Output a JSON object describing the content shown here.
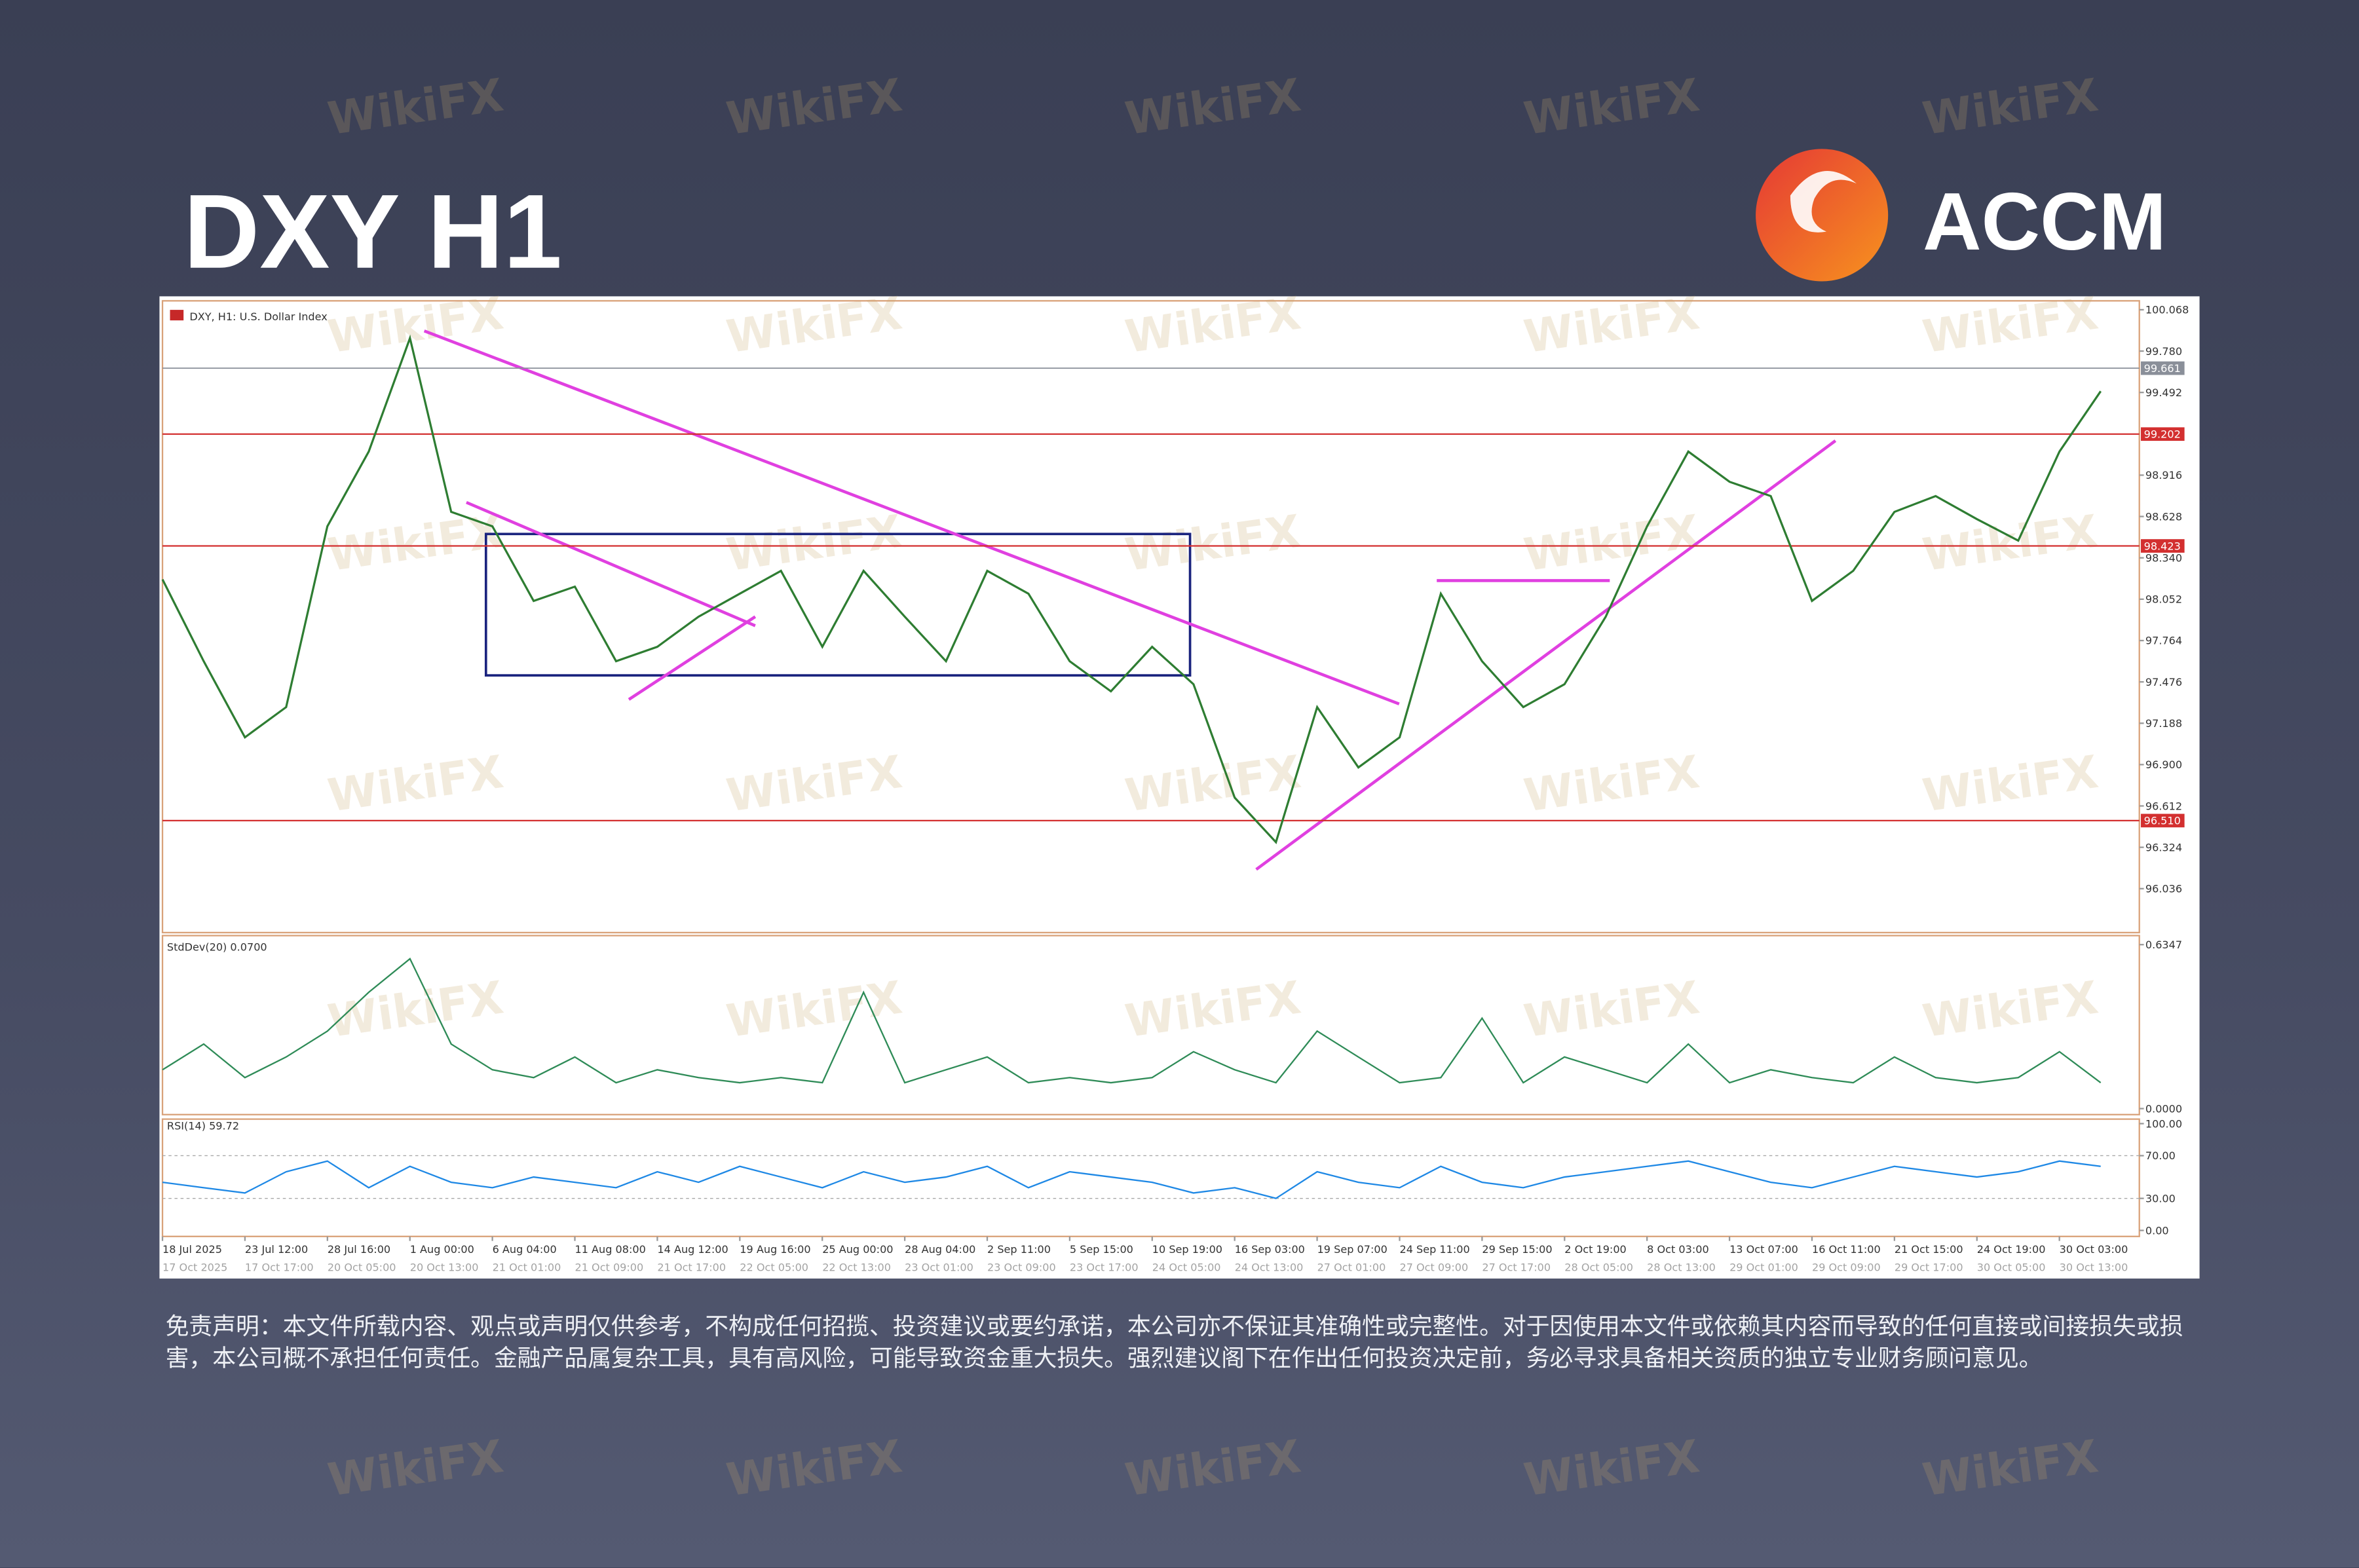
{
  "header": {
    "title": "DXY H1",
    "brand": "ACCM"
  },
  "watermark": "WikiFX",
  "chart_data": {
    "type": "line",
    "title": "DXY, H1: U.S. Dollar Index",
    "categories": [
      "18 Jul 2025",
      null,
      "23 Jul 12:00",
      null,
      "28 Jul 16:00",
      null,
      "1 Aug 00:00",
      null,
      "6 Aug 04:00",
      null,
      "11 Aug 08:00",
      null,
      "14 Aug 12:00",
      null,
      "19 Aug 16:00",
      null,
      "25 Aug 00:00",
      null,
      "28 Aug 04:00",
      null,
      "2 Sep 11:00",
      null,
      "5 Sep 15:00",
      null,
      "10 Sep 19:00",
      null,
      "16 Sep 03:00",
      null,
      "19 Sep 07:00",
      null,
      "24 Sep 11:00",
      null,
      "29 Sep 15:00",
      null,
      "2 Oct 19:00",
      null,
      "8 Oct 03:00",
      null,
      "13 Oct 07:00",
      null,
      "16 Oct 11:00",
      null,
      "21 Oct 15:00",
      null,
      "24 Oct 19:00",
      null,
      "30 Oct 03:00",
      null
    ],
    "secondary_categories": [
      "17 Oct 2025",
      null,
      "17 Oct 17:00",
      null,
      "20 Oct 05:00",
      null,
      "20 Oct 13:00",
      null,
      "21 Oct 01:00",
      null,
      "21 Oct 09:00",
      null,
      "21 Oct 17:00",
      null,
      "22 Oct 05:00",
      null,
      "22 Oct 13:00",
      null,
      "23 Oct 01:00",
      null,
      "23 Oct 09:00",
      null,
      "23 Oct 17:00",
      null,
      "24 Oct 05:00",
      null,
      "24 Oct 13:00",
      null,
      "27 Oct 01:00",
      null,
      "27 Oct 09:00",
      null,
      "27 Oct 17:00",
      null,
      "28 Oct 05:00",
      null,
      "28 Oct 13:00",
      null,
      "29 Oct 01:00",
      null,
      "29 Oct 09:00",
      null,
      "29 Oct 17:00",
      null,
      "30 Oct 05:00",
      null,
      "30 Oct 13:00",
      null
    ],
    "values": [
      98.19,
      97.62,
      97.09,
      97.3,
      98.56,
      99.08,
      99.87,
      98.66,
      98.56,
      98.04,
      98.14,
      97.62,
      97.72,
      97.93,
      98.09,
      98.25,
      97.72,
      98.25,
      97.93,
      97.62,
      98.25,
      98.09,
      97.62,
      97.41,
      97.72,
      97.46,
      96.67,
      96.36,
      97.3,
      96.88,
      97.09,
      98.09,
      97.62,
      97.3,
      97.46,
      97.93,
      98.56,
      99.08,
      98.87,
      98.77,
      98.04,
      98.25,
      98.66,
      98.77,
      98.61,
      98.46,
      99.08,
      99.5
    ],
    "color": "#2e7d32",
    "ylim": [
      95.73,
      100.13
    ],
    "yticks": [
      100.068,
      {
        "value": 99.78,
        "label": "99.780"
      },
      99.492,
      98.916,
      98.628,
      {
        "value": 98.34,
        "label": "98.340"
      },
      98.052,
      97.764,
      97.476,
      97.188,
      {
        "value": 96.9,
        "label": "96.900"
      },
      96.612,
      96.324,
      96.036
    ],
    "levels": [
      {
        "value": 99.202,
        "color": "#d32f2f"
      },
      {
        "value": 98.423,
        "color": "#d32f2f"
      },
      {
        "value": 96.51,
        "label": "96.510",
        "color": "#d32f2f"
      }
    ],
    "last_price": {
      "value": 99.661,
      "color": "#8a8f99"
    },
    "indicators": [
      {
        "title": "StdDev(20) 0.0700",
        "color": "#2e8b57",
        "values": [
          0.15,
          0.25,
          0.12,
          0.2,
          0.3,
          0.45,
          0.58,
          0.25,
          0.15,
          0.12,
          0.2,
          0.1,
          0.15,
          0.12,
          0.1,
          0.12,
          0.1,
          0.45,
          0.1,
          0.15,
          0.2,
          0.1,
          0.12,
          0.1,
          0.12,
          0.22,
          0.15,
          0.1,
          0.3,
          0.2,
          0.1,
          0.12,
          0.35,
          0.1,
          0.2,
          0.15,
          0.1,
          0.25,
          0.1,
          0.15,
          0.12,
          0.1,
          0.2,
          0.12,
          0.1,
          0.12,
          0.22,
          0.1
        ],
        "ylim": [
          0,
          0.6347
        ],
        "yticks": [
          0.6347,
          {
            "value": 0,
            "label": "0.0000"
          }
        ],
        "grid": false
      },
      {
        "title": "RSI(14) 59.72",
        "color": "#1e88e5",
        "values": [
          45,
          40,
          35,
          55,
          65,
          40,
          60,
          45,
          40,
          50,
          45,
          40,
          55,
          45,
          60,
          50,
          40,
          55,
          45,
          50,
          60,
          40,
          55,
          50,
          45,
          35,
          40,
          30,
          55,
          45,
          40,
          60,
          45,
          40,
          50,
          55,
          60,
          65,
          55,
          45,
          40,
          50,
          60,
          55,
          50,
          55,
          65,
          60
        ],
        "ylim": [
          0,
          100
        ],
        "yticks": [
          {
            "value": 100,
            "label": "100.00"
          },
          {
            "value": 70,
            "label": "70.00"
          },
          {
            "value": 30,
            "label": "30.00"
          },
          {
            "value": 0,
            "label": "0.00"
          }
        ],
        "grid": true
      }
    ]
  },
  "disclaimer": "免责声明：本文件所载内容、观点或声明仅供参考，不构成任何招揽、投资建议或要约承诺，本公司亦不保证其准确性或完整性。对于因使用本文件或依赖其内容而导致的任何直接或间接损失或损害，本公司概不承担任何责任。金融产品属复杂工具，具有高风险，可能导致资金重大损失。强烈建议阁下在作出任何投资决定前，务必寻求具备相关资质的独立专业财务顾问意见。"
}
